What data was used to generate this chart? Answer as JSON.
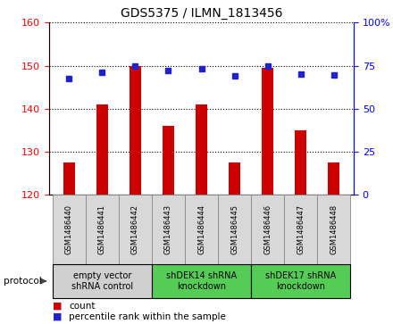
{
  "title": "GDS5375 / ILMN_1813456",
  "samples": [
    "GSM1486440",
    "GSM1486441",
    "GSM1486442",
    "GSM1486443",
    "GSM1486444",
    "GSM1486445",
    "GSM1486446",
    "GSM1486447",
    "GSM1486448"
  ],
  "counts": [
    127.5,
    141.0,
    150.0,
    136.0,
    141.0,
    127.5,
    149.5,
    135.0,
    127.5
  ],
  "percentiles": [
    67.5,
    71.0,
    75.0,
    72.0,
    73.0,
    69.0,
    74.5,
    70.0,
    69.5
  ],
  "ylim_left": [
    120,
    160
  ],
  "ylim_right": [
    0,
    100
  ],
  "yticks_left": [
    120,
    130,
    140,
    150,
    160
  ],
  "yticks_right": [
    0,
    25,
    50,
    75,
    100
  ],
  "bar_color": "#cc0000",
  "dot_color": "#2222cc",
  "bar_bottom": 120,
  "bar_width": 0.35,
  "groups": [
    {
      "label": "empty vector\nshRNA control",
      "start": 0,
      "end": 3,
      "color": "#d0d0d0"
    },
    {
      "label": "shDEK14 shRNA\nknockdown",
      "start": 3,
      "end": 6,
      "color": "#55cc55"
    },
    {
      "label": "shDEK17 shRNA\nknockdown",
      "start": 6,
      "end": 9,
      "color": "#55cc55"
    }
  ],
  "sample_box_color": "#d8d8d8",
  "protocol_label": "protocol",
  "legend_count_label": "count",
  "legend_pct_label": "percentile rank within the sample",
  "title_fontsize": 10,
  "tick_fontsize": 8,
  "sample_fontsize": 6,
  "group_fontsize": 7,
  "legend_fontsize": 7.5
}
